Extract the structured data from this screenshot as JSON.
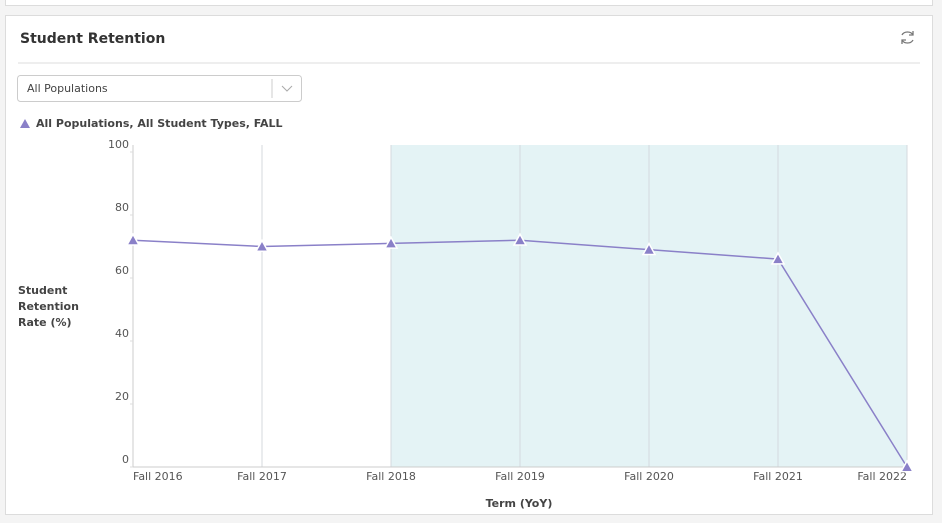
{
  "panel": {
    "title": "Student Retention",
    "dropdown": "All Populations"
  },
  "chart_data": {
    "type": "line",
    "categories": [
      "Fall 2016",
      "Fall 2017",
      "Fall 2018",
      "Fall 2019",
      "Fall 2020",
      "Fall 2021",
      "Fall 2022"
    ],
    "series": [
      {
        "name": "All Populations, All Student Types, FALL",
        "color": "#8a80c8",
        "values": [
          72,
          70,
          71,
          72,
          69,
          66,
          0
        ]
      }
    ],
    "ylim": [
      0,
      100
    ],
    "yticks": [
      0,
      20,
      40,
      60,
      80,
      100
    ],
    "y_label": "Student Retention Rate (%)",
    "x_label": "Term (YoY)",
    "grid": true,
    "shade": {
      "from": 2,
      "to": 6,
      "color": "#e4f3f5"
    }
  }
}
